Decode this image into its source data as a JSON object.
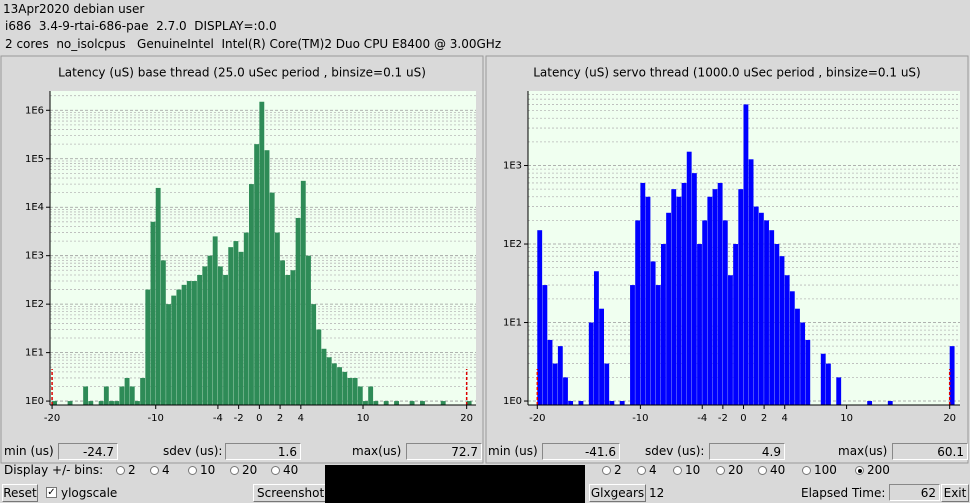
{
  "header": {
    "line1": "13Apr2020 debian user",
    "line2": "i686  3.4-9-rtai-686-pae  2.7.0  DISPLAY=:0.0",
    "line3": "2 cores  no_isolcpus   GenuineIntel  Intel(R) Core(TM)2 Duo CPU E8400 @ 3.00GHz"
  },
  "chart_data": [
    {
      "type": "histogram",
      "title": "Latency (uS) base thread (25.0 uSec period , binsize=0.1 uS)",
      "color": "#2e8b57",
      "log_y": true,
      "grid": true,
      "bins": [
        -20,
        -19.5,
        -19,
        -18.5,
        -18,
        -17.5,
        -17,
        -16.5,
        -16,
        -15.5,
        -15,
        -14.5,
        -14,
        -13.5,
        -13,
        -12.5,
        -12,
        -11.5,
        -11,
        -10.5,
        -10,
        -9.5,
        -9,
        -8.5,
        -8,
        -7.5,
        -7,
        -6.5,
        -6,
        -5.5,
        -5,
        -4.5,
        -4,
        -3.5,
        -3,
        -2.5,
        -2,
        -1.5,
        -1,
        -0.5,
        0,
        0.5,
        1,
        1.5,
        2,
        2.5,
        3,
        3.5,
        4,
        4.5,
        5,
        5.5,
        6,
        6.5,
        7,
        7.5,
        8,
        8.5,
        9,
        9.5,
        10,
        10.5,
        11,
        11.5,
        12,
        12.5,
        13,
        13.5,
        14,
        14.5,
        15,
        15.5,
        16,
        16.5,
        17,
        17.5,
        18,
        18.5,
        19,
        19.5,
        20,
        20.5,
        21
      ],
      "counts": [
        1,
        0,
        0,
        1,
        0,
        0,
        2,
        1,
        0,
        1,
        2,
        1,
        1,
        2,
        3,
        2,
        1,
        3,
        200,
        5000,
        25000,
        800,
        100,
        150,
        200,
        250,
        300,
        300,
        400,
        600,
        1000,
        2500,
        600,
        400,
        1500,
        2000,
        1200,
        3000,
        30000,
        200000,
        1500000,
        150000,
        20000,
        3000,
        800,
        400,
        500,
        6000,
        35000,
        1000,
        100,
        30,
        12,
        8,
        6,
        5,
        4,
        3,
        3,
        2,
        1,
        2,
        1,
        0,
        1,
        0,
        1,
        0,
        0,
        1,
        0,
        1,
        0,
        0,
        0,
        1,
        0,
        0,
        0,
        0,
        1,
        0
      ],
      "xlim": [
        -20.2,
        20.9
      ],
      "xticks": [
        -20,
        -10,
        -4,
        -2,
        0,
        2,
        4,
        10,
        20
      ],
      "ylim": [
        0.83,
        2500000
      ],
      "yticks": [
        {
          "value": 1,
          "label": "1E0"
        },
        {
          "value": 10,
          "label": "1E1"
        },
        {
          "value": 100,
          "label": "1E2"
        },
        {
          "value": 1000,
          "label": "1E3"
        },
        {
          "value": 10000,
          "label": "1E4"
        },
        {
          "value": 100000,
          "label": "1E5"
        },
        {
          "value": 1000000,
          "label": "1E6"
        }
      ],
      "yminorticks": [
        2,
        3,
        4,
        5,
        6,
        7,
        8,
        9,
        20,
        30,
        40,
        50,
        60,
        70,
        80,
        90,
        200,
        300,
        400,
        500,
        600,
        700,
        800,
        900,
        2000,
        3000,
        4000,
        5000,
        6000,
        7000,
        8000,
        9000,
        20000,
        30000,
        40000,
        50000,
        60000,
        70000,
        80000,
        90000,
        200000,
        300000,
        400000,
        500000,
        600000,
        700000,
        800000,
        900000,
        2000000
      ]
    },
    {
      "type": "histogram",
      "title": "Latency (uS) servo thread (1000.0 uSec period , binsize=0.1 uS)",
      "color": "#0000ff",
      "log_y": true,
      "grid": true,
      "bins": [
        -20,
        -19.5,
        -19,
        -18.5,
        -18,
        -17.5,
        -17,
        -16.5,
        -16,
        -15.5,
        -15,
        -14.5,
        -14,
        -13.5,
        -13,
        -12.5,
        -12,
        -11.5,
        -11,
        -10.5,
        -10,
        -9.5,
        -9,
        -8.5,
        -8,
        -7.5,
        -7,
        -6.5,
        -6,
        -5.5,
        -5,
        -4.5,
        -4,
        -3.5,
        -3,
        -2.5,
        -2,
        -1.5,
        -1,
        -0.5,
        0,
        0.5,
        1,
        1.5,
        2,
        2.5,
        3,
        3.5,
        4,
        4.5,
        5,
        5.5,
        6,
        6.5,
        7,
        7.5,
        8,
        8.5,
        9,
        9.5,
        10,
        10.5,
        11,
        11.5,
        12,
        12.5,
        13,
        13.5,
        14,
        14.5,
        15,
        15.5,
        16,
        16.5,
        17,
        17.5,
        18,
        18.5,
        19,
        19.5,
        20,
        20.5,
        21
      ],
      "counts": [
        150,
        30,
        6,
        3,
        5,
        2,
        1,
        0,
        1,
        0,
        10,
        45,
        15,
        3,
        1,
        0,
        1,
        0,
        30,
        200,
        600,
        400,
        60,
        30,
        100,
        250,
        500,
        400,
        600,
        1500,
        800,
        100,
        200,
        400,
        500,
        600,
        200,
        40,
        100,
        500,
        6000,
        1200,
        300,
        250,
        200,
        150,
        100,
        70,
        40,
        25,
        15,
        10,
        6,
        0,
        0,
        4,
        3,
        0,
        2,
        0,
        0,
        0,
        0,
        0,
        1,
        0,
        0,
        0,
        1,
        0,
        0,
        0,
        0,
        0,
        0,
        0,
        0,
        0,
        0,
        0,
        5,
        0
      ],
      "xlim": [
        -20.9,
        21
      ],
      "xticks": [
        -20,
        -10,
        -4,
        -2,
        0,
        2,
        4,
        10,
        20
      ],
      "ylim": [
        0.89,
        8900
      ],
      "yticks": [
        {
          "value": 1,
          "label": "1E0"
        },
        {
          "value": 10,
          "label": "1E1"
        },
        {
          "value": 100,
          "label": "1E2"
        },
        {
          "value": 1000,
          "label": "1E3"
        }
      ],
      "yminorticks": [
        2,
        3,
        4,
        5,
        6,
        7,
        8,
        9,
        20,
        30,
        40,
        50,
        60,
        70,
        80,
        90,
        200,
        300,
        400,
        500,
        600,
        700,
        800,
        900,
        2000,
        3000,
        4000,
        5000,
        6000,
        7000,
        8000
      ]
    }
  ],
  "stats": [
    {
      "min_label": "min (us)",
      "min": -24.7,
      "sdev_label": "sdev (us):",
      "sdev": 1.6,
      "max_label": "max(us)",
      "max": 72.7
    },
    {
      "min_label": "min (us)",
      "min": -41.6,
      "sdev_label": "sdev (us):",
      "sdev": 4.9,
      "max_label": "max(us)",
      "max": 60.1
    }
  ],
  "controls": {
    "bins_label": "Display +/- bins:",
    "left_bins": [
      2,
      4,
      10,
      20,
      40
    ],
    "right_bins": [
      2,
      4,
      10,
      20,
      40,
      100,
      200
    ],
    "selected": 200,
    "reset": "Reset",
    "ylogscale": "ylogscale",
    "screenshot": "Screenshot",
    "glxgears": "Glxgears",
    "glx_count": 12,
    "elapsed_label": "Elapsed Time:",
    "elapsed": 62,
    "exit": "Exit"
  }
}
